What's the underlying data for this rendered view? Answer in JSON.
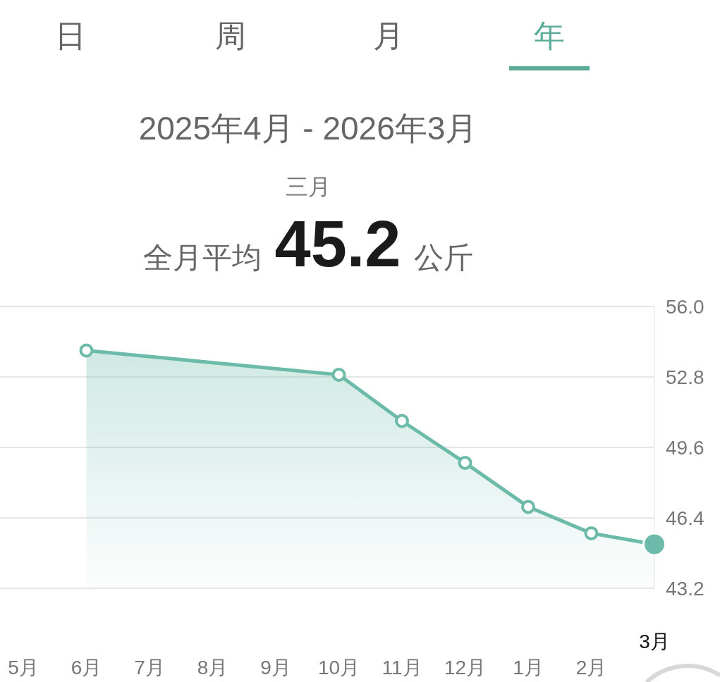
{
  "chart_data": {
    "type": "area",
    "title": "2025年4月 - 2026年3月",
    "subtitle": "三月",
    "annotations": [
      "日",
      "周",
      "月",
      "年",
      "全月平均",
      "45.2",
      "公斤"
    ],
    "categories": [
      "5月",
      "6月",
      "7月",
      "8月",
      "9月",
      "10月",
      "11月",
      "12月",
      "1月",
      "2月",
      "3月"
    ],
    "values": [
      null,
      54.0,
      null,
      null,
      null,
      52.9,
      50.8,
      48.9,
      46.9,
      45.7,
      45.2
    ],
    "color": "#6cbaa9",
    "ylim": [
      43.2,
      56.0
    ],
    "yticks": [
      {
        "value": 56.0,
        "label": "56.0"
      },
      52.8,
      49.6,
      46.4,
      43.2
    ],
    "grid": "y",
    "marker": "circle"
  }
}
